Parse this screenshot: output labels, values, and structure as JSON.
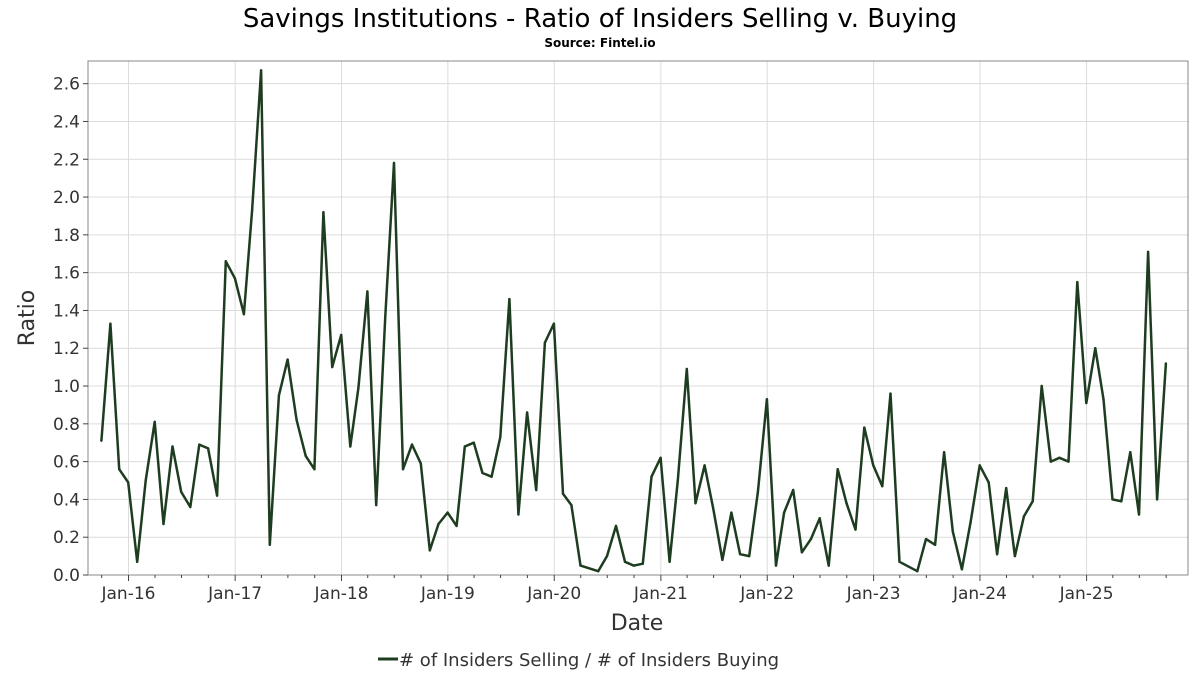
{
  "chart_data": {
    "type": "line",
    "title": "Savings Institutions - Ratio of Insiders Selling v. Buying",
    "subtitle": "Source: Fintel.io",
    "xlabel": "Date",
    "ylabel": "Ratio",
    "x_ticks": [
      "Jan-16",
      "Jan-17",
      "Jan-18",
      "Jan-19",
      "Jan-20",
      "Jan-21",
      "Jan-22",
      "Jan-23",
      "Jan-24",
      "Jan-25"
    ],
    "y_ticks": [
      "0.0",
      "0.2",
      "0.4",
      "0.6",
      "0.8",
      "1.0",
      "1.2",
      "1.4",
      "1.6",
      "1.8",
      "2.0",
      "2.2",
      "2.4",
      "2.6"
    ],
    "xlim": [
      "2015-08-15",
      "2025-12-15"
    ],
    "ylim": [
      0,
      2.72
    ],
    "grid": true,
    "legend_position": "bottom-center",
    "line_color": "#1e3d20",
    "series": [
      {
        "name": "# of Insiders Selling / # of Insiders Buying",
        "points": [
          [
            "2015-09-30",
            0.71
          ],
          [
            "2015-10-31",
            1.33
          ],
          [
            "2015-11-30",
            0.56
          ],
          [
            "2015-12-31",
            0.49
          ],
          [
            "2016-01-31",
            0.07
          ],
          [
            "2016-02-29",
            0.5
          ],
          [
            "2016-03-31",
            0.81
          ],
          [
            "2016-04-30",
            0.27
          ],
          [
            "2016-05-31",
            0.68
          ],
          [
            "2016-06-30",
            0.44
          ],
          [
            "2016-07-31",
            0.36
          ],
          [
            "2016-08-31",
            0.69
          ],
          [
            "2016-09-30",
            0.67
          ],
          [
            "2016-10-31",
            0.42
          ],
          [
            "2016-11-30",
            1.66
          ],
          [
            "2016-12-31",
            1.57
          ],
          [
            "2017-01-31",
            1.38
          ],
          [
            "2017-02-28",
            1.93
          ],
          [
            "2017-03-31",
            2.67
          ],
          [
            "2017-04-30",
            0.16
          ],
          [
            "2017-05-31",
            0.95
          ],
          [
            "2017-06-30",
            1.14
          ],
          [
            "2017-07-31",
            0.82
          ],
          [
            "2017-08-31",
            0.63
          ],
          [
            "2017-09-30",
            0.56
          ],
          [
            "2017-10-31",
            1.92
          ],
          [
            "2017-11-30",
            1.1
          ],
          [
            "2017-12-31",
            1.27
          ],
          [
            "2018-01-31",
            0.68
          ],
          [
            "2018-02-28",
            0.99
          ],
          [
            "2018-03-31",
            1.5
          ],
          [
            "2018-04-30",
            0.37
          ],
          [
            "2018-05-31",
            1.36
          ],
          [
            "2018-06-30",
            2.18
          ],
          [
            "2018-07-31",
            0.56
          ],
          [
            "2018-08-31",
            0.69
          ],
          [
            "2018-09-30",
            0.59
          ],
          [
            "2018-10-31",
            0.13
          ],
          [
            "2018-11-30",
            0.27
          ],
          [
            "2018-12-31",
            0.33
          ],
          [
            "2019-01-31",
            0.26
          ],
          [
            "2019-02-28",
            0.68
          ],
          [
            "2019-03-31",
            0.7
          ],
          [
            "2019-04-30",
            0.54
          ],
          [
            "2019-05-31",
            0.52
          ],
          [
            "2019-06-30",
            0.73
          ],
          [
            "2019-07-31",
            1.46
          ],
          [
            "2019-08-31",
            0.32
          ],
          [
            "2019-09-30",
            0.86
          ],
          [
            "2019-10-31",
            0.45
          ],
          [
            "2019-11-30",
            1.23
          ],
          [
            "2019-12-31",
            1.33
          ],
          [
            "2020-01-31",
            0.43
          ],
          [
            "2020-02-29",
            0.37
          ],
          [
            "2020-03-31",
            0.05
          ],
          [
            "2020-05-31",
            0.02
          ],
          [
            "2020-06-30",
            0.1
          ],
          [
            "2020-07-31",
            0.26
          ],
          [
            "2020-08-31",
            0.07
          ],
          [
            "2020-09-30",
            0.05
          ],
          [
            "2020-10-31",
            0.06
          ],
          [
            "2020-11-30",
            0.52
          ],
          [
            "2020-12-31",
            0.62
          ],
          [
            "2021-01-31",
            0.07
          ],
          [
            "2021-02-28",
            0.5
          ],
          [
            "2021-03-31",
            1.09
          ],
          [
            "2021-04-30",
            0.38
          ],
          [
            "2021-05-31",
            0.58
          ],
          [
            "2021-06-30",
            0.35
          ],
          [
            "2021-07-31",
            0.08
          ],
          [
            "2021-08-31",
            0.33
          ],
          [
            "2021-09-30",
            0.11
          ],
          [
            "2021-10-31",
            0.1
          ],
          [
            "2021-11-30",
            0.44
          ],
          [
            "2021-12-31",
            0.93
          ],
          [
            "2022-01-31",
            0.05
          ],
          [
            "2022-02-28",
            0.33
          ],
          [
            "2022-03-31",
            0.45
          ],
          [
            "2022-04-30",
            0.12
          ],
          [
            "2022-05-31",
            0.19
          ],
          [
            "2022-06-30",
            0.3
          ],
          [
            "2022-07-31",
            0.05
          ],
          [
            "2022-08-31",
            0.56
          ],
          [
            "2022-09-30",
            0.38
          ],
          [
            "2022-10-31",
            0.24
          ],
          [
            "2022-11-30",
            0.78
          ],
          [
            "2022-12-31",
            0.58
          ],
          [
            "2023-01-31",
            0.47
          ],
          [
            "2023-02-28",
            0.96
          ],
          [
            "2023-03-31",
            0.07
          ],
          [
            "2023-05-31",
            0.02
          ],
          [
            "2023-06-30",
            0.19
          ],
          [
            "2023-07-31",
            0.16
          ],
          [
            "2023-08-31",
            0.65
          ],
          [
            "2023-09-30",
            0.23
          ],
          [
            "2023-10-31",
            0.03
          ],
          [
            "2023-11-30",
            0.28
          ],
          [
            "2023-12-31",
            0.58
          ],
          [
            "2024-01-31",
            0.49
          ],
          [
            "2024-02-29",
            0.11
          ],
          [
            "2024-03-31",
            0.46
          ],
          [
            "2024-04-30",
            0.1
          ],
          [
            "2024-05-31",
            0.31
          ],
          [
            "2024-06-30",
            0.39
          ],
          [
            "2024-07-31",
            1.0
          ],
          [
            "2024-08-31",
            0.6
          ],
          [
            "2024-09-30",
            0.62
          ],
          [
            "2024-10-31",
            0.6
          ],
          [
            "2024-11-30",
            1.55
          ],
          [
            "2024-12-31",
            0.91
          ],
          [
            "2025-01-31",
            1.2
          ],
          [
            "2025-02-28",
            0.93
          ],
          [
            "2025-03-31",
            0.4
          ],
          [
            "2025-04-30",
            0.39
          ],
          [
            "2025-05-31",
            0.65
          ],
          [
            "2025-06-30",
            0.32
          ],
          [
            "2025-07-31",
            1.71
          ],
          [
            "2025-08-31",
            0.4
          ],
          [
            "2025-09-30",
            1.12
          ]
        ]
      }
    ]
  }
}
